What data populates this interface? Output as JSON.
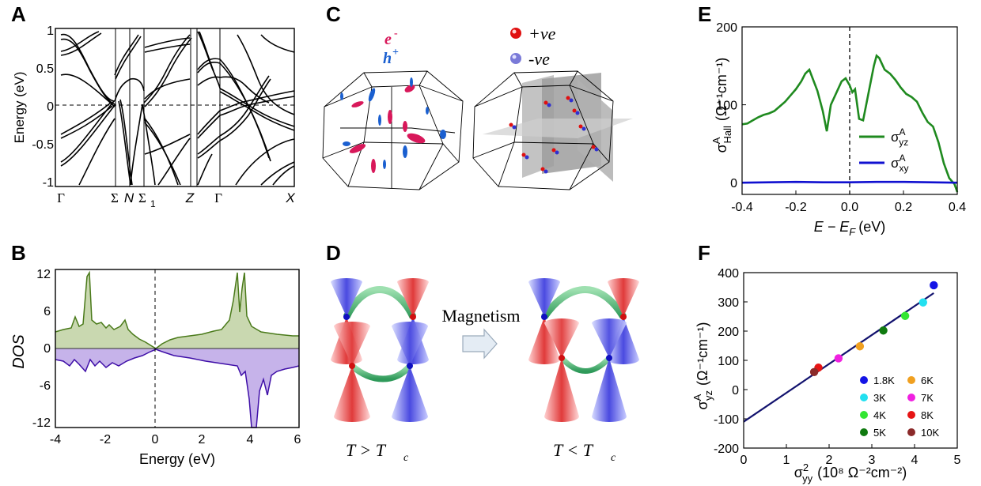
{
  "figure": {
    "panel_labels": [
      "A",
      "B",
      "C",
      "D",
      "E",
      "F"
    ]
  },
  "panelA": {
    "ylabel": "Energy (eV)",
    "yticks": [
      "1",
      "0.5",
      "0",
      "-0.5",
      "-1"
    ],
    "kpoints": [
      "Γ",
      "Σ",
      "N",
      "Σ",
      "Z",
      "Γ",
      "X"
    ],
    "kpoint_sub": "1"
  },
  "panelB": {
    "ylabel": "DOS",
    "xlabel": "Energy (eV)",
    "xticks": [
      "-4",
      "-2",
      "0",
      "2",
      "4",
      "6"
    ],
    "yticks": [
      "12",
      "6",
      "0",
      "-6",
      "-12"
    ],
    "colors": {
      "up": "#4a7a1a",
      "up_fill": "#c9d8b0",
      "down": "#3f0fa8",
      "down_fill": "#c6b3ea"
    }
  },
  "panelC": {
    "electron_label": "e",
    "electron_sup": "-",
    "hole_label": "h",
    "hole_sup": "+",
    "pos_label": "+ve",
    "neg_label": "-ve",
    "colors": {
      "electron": "#d8185a",
      "hole": "#1a5fd0",
      "pos": "#e01010",
      "neg": "#3030d0"
    }
  },
  "panelD": {
    "arrow_label": "Magnetism",
    "left_caption": "T > T",
    "left_sub": "c",
    "right_caption": "T < T",
    "right_sub": "c"
  },
  "chart_data": [
    {
      "panel": "E",
      "type": "line",
      "ylabel_main": "σ",
      "ylabel_sup": "A",
      "ylabel_sub": "Hall",
      "ylabel_units": "(Ω⁻¹cm⁻¹)",
      "xlabel": "E − E",
      "xlabel_sub": "F",
      "xlabel_units": "(eV)",
      "xlim": [
        -0.4,
        0.4
      ],
      "ylim": [
        -15,
        200
      ],
      "xticks": [
        "-0.4",
        "-0.2",
        "0.0",
        "0.2",
        "0.4"
      ],
      "yticks": [
        "200",
        "100",
        "0"
      ],
      "vline_x": 0.0,
      "series": [
        {
          "name": "σ",
          "name_sup": "A",
          "name_sub": "yz",
          "color": "#1f8a1f",
          "x": [
            -0.4,
            -0.38,
            -0.36,
            -0.34,
            -0.32,
            -0.3,
            -0.28,
            -0.26,
            -0.24,
            -0.22,
            -0.2,
            -0.18,
            -0.165,
            -0.15,
            -0.14,
            -0.12,
            -0.1,
            -0.085,
            -0.07,
            -0.05,
            -0.03,
            -0.015,
            0.0,
            0.01,
            0.02,
            0.035,
            0.05,
            0.07,
            0.09,
            0.1,
            0.11,
            0.13,
            0.15,
            0.17,
            0.19,
            0.21,
            0.23,
            0.25,
            0.27,
            0.29,
            0.31,
            0.33,
            0.35,
            0.37,
            0.39,
            0.4
          ],
          "y": [
            75,
            76,
            80,
            84,
            87,
            89,
            92,
            98,
            104,
            112,
            120,
            130,
            140,
            145,
            136,
            118,
            92,
            66,
            100,
            115,
            130,
            134,
            125,
            116,
            120,
            82,
            80,
            115,
            150,
            163,
            160,
            145,
            140,
            132,
            122,
            114,
            110,
            104,
            90,
            78,
            72,
            52,
            25,
            6,
            -2,
            -12
          ]
        },
        {
          "name": "σ",
          "name_sup": "A",
          "name_sub": "xy",
          "color": "#1010d0",
          "x": [
            -0.4,
            -0.3,
            -0.2,
            -0.1,
            0.0,
            0.1,
            0.2,
            0.3,
            0.4
          ],
          "y": [
            0,
            0.5,
            1,
            0.5,
            0.5,
            1,
            1,
            0.5,
            0
          ]
        }
      ]
    },
    {
      "panel": "F",
      "type": "scatter",
      "ylabel_main": "σ",
      "ylabel_sup": "A",
      "ylabel_sub": "yz",
      "ylabel_units": "(Ω⁻¹cm⁻¹)",
      "xlabel_main": "σ",
      "xlabel_sup": "2",
      "xlabel_sub": "yy",
      "xlabel_units": "(10⁸ Ω⁻²cm⁻²)",
      "xlim": [
        0,
        5
      ],
      "ylim": [
        -200,
        400
      ],
      "xticks": [
        "0",
        "1",
        "2",
        "3",
        "4",
        "5"
      ],
      "yticks": [
        "400",
        "300",
        "200",
        "100",
        "0",
        "-100",
        "-200"
      ],
      "fit_line": {
        "x": [
          0,
          4.45
        ],
        "y": [
          -110,
          330
        ],
        "color": "#12126e"
      },
      "points": [
        {
          "label": "1.8K",
          "x": 4.45,
          "y": 357,
          "color": "#1414e6"
        },
        {
          "label": "3K",
          "x": 4.2,
          "y": 298,
          "color": "#22e0f0"
        },
        {
          "label": "4K",
          "x": 3.78,
          "y": 252,
          "color": "#33e633"
        },
        {
          "label": "5K",
          "x": 3.27,
          "y": 202,
          "color": "#107a10"
        },
        {
          "label": "6K",
          "x": 2.72,
          "y": 148,
          "color": "#f0a020"
        },
        {
          "label": "7K",
          "x": 2.22,
          "y": 107,
          "color": "#f020e0"
        },
        {
          "label": "8K",
          "x": 1.75,
          "y": 75,
          "color": "#e61414"
        },
        {
          "label": "10K",
          "x": 1.65,
          "y": 60,
          "color": "#8b2a2a"
        }
      ]
    }
  ]
}
